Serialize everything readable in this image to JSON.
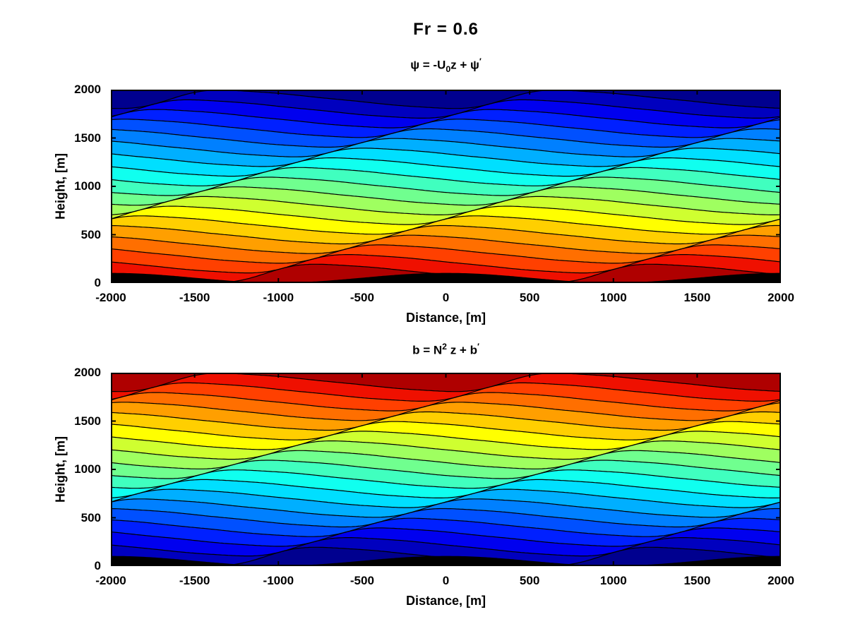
{
  "figure": {
    "title": "Fr = 0.6",
    "background": "#ffffff",
    "text_color": "#000000"
  },
  "subplots": [
    {
      "name": "psi",
      "title_parts": {
        "pre": "ψ = -U",
        "sub": "0",
        "mid": "z + ψ",
        "prime": "′"
      },
      "xlabel": "Distance, [m]",
      "ylabel": "Height, [m]"
    },
    {
      "name": "b",
      "title_parts": {
        "pre": "b = N",
        "sup": "2",
        "mid": " z + b",
        "prime": "′"
      },
      "xlabel": "Distance, [m]",
      "ylabel": "Height, [m]"
    }
  ],
  "chart_data": [
    {
      "type": "contour-filled",
      "title": "psi = -U0 z + psi'",
      "xlabel": "Distance, [m]",
      "ylabel": "Height, [m]",
      "x_range": [
        -2000,
        2000
      ],
      "y_range": [
        0,
        2000
      ],
      "x_ticks": [
        -2000,
        -1500,
        -1000,
        -500,
        0,
        500,
        1000,
        1500,
        2000
      ],
      "y_ticks": [
        0,
        500,
        1000,
        1500,
        2000
      ],
      "grid": false,
      "n_bands": 20,
      "contour_levels_m": {
        "min": 100,
        "max": 1900,
        "step": 100
      },
      "colormap": "jet",
      "band_colors_top_to_bottom": [
        "#00008F",
        "#0000BF",
        "#0000EF",
        "#0020FF",
        "#0050FF",
        "#0080FF",
        "#00AFFF",
        "#00DFFF",
        "#10FFEF",
        "#40FFBF",
        "#70FF8F",
        "#9FFF60",
        "#CFFF30",
        "#FFFF00",
        "#FFCF00",
        "#FF9F00",
        "#FF6F00",
        "#FF4000",
        "#EF1000",
        "#AF0000"
      ],
      "wave": {
        "horizontal_wavelength_m": 2000,
        "vertical_wavelength_m": 1050,
        "amplitude_m": 95,
        "harmonics": 4,
        "harmonic_decay": 0.55,
        "phase0_rad": 3.98
      },
      "terrain": {
        "base_m": 55,
        "amplitude_m": 50,
        "wavelength_m": 2000,
        "min_m": 12,
        "color": "#000000"
      },
      "line_color": "#000000"
    },
    {
      "type": "contour-filled",
      "title": "b = N^2 z + b'",
      "xlabel": "Distance, [m]",
      "ylabel": "Height, [m]",
      "x_range": [
        -2000,
        2000
      ],
      "y_range": [
        0,
        2000
      ],
      "x_ticks": [
        -2000,
        -1500,
        -1000,
        -500,
        0,
        500,
        1000,
        1500,
        2000
      ],
      "y_ticks": [
        0,
        500,
        1000,
        1500,
        2000
      ],
      "grid": false,
      "n_bands": 20,
      "contour_levels_m": {
        "min": 100,
        "max": 1900,
        "step": 100
      },
      "colormap": "jet-reversed",
      "band_colors_top_to_bottom": [
        "#AF0000",
        "#EF1000",
        "#FF4000",
        "#FF6F00",
        "#FF9F00",
        "#FFCF00",
        "#FFFF00",
        "#CFFF30",
        "#9FFF60",
        "#70FF8F",
        "#40FFBF",
        "#10FFEF",
        "#00DFFF",
        "#00AFFF",
        "#0080FF",
        "#0050FF",
        "#0020FF",
        "#0000EF",
        "#0000BF",
        "#00008F"
      ],
      "wave": {
        "horizontal_wavelength_m": 2000,
        "vertical_wavelength_m": 1050,
        "amplitude_m": 95,
        "harmonics": 4,
        "harmonic_decay": 0.55,
        "phase0_rad": 3.98
      },
      "terrain": {
        "base_m": 55,
        "amplitude_m": 50,
        "wavelength_m": 2000,
        "min_m": 12,
        "color": "#000000"
      },
      "line_color": "#000000"
    }
  ]
}
